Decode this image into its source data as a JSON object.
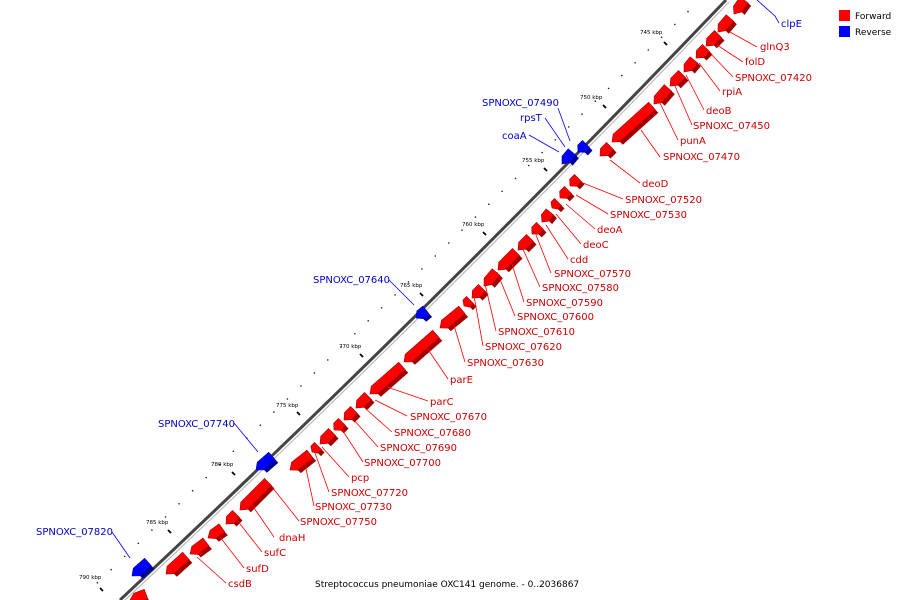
{
  "caption": "Streptococcus pneumoniae OXC141 genome. - 0..2036867",
  "legend": [
    {
      "label": "Forward",
      "color": "#ff0000"
    },
    {
      "label": "Reverse",
      "color": "#0000ff"
    }
  ],
  "colors": {
    "forward": "#ff0000",
    "reverse": "#0000ff",
    "forward_edge": "#a00000",
    "reverse_edge": "#00009a",
    "backbone": "#888888"
  },
  "scale_labels": [
    "745 kbp",
    "750 kbp",
    "755 kbp",
    "760 kbp",
    "765 kbp",
    "770 kbp",
    "775 kbp",
    "780 kbp",
    "785 kbp",
    "790 kbp"
  ],
  "forward_labels": [
    "glnQ3",
    "folD",
    "SPNOXC_07420",
    "rpiA",
    "deoB",
    "SPNOXC_07450",
    "punA",
    "SPNOXC_07470",
    "deoD",
    "SPNOXC_07520",
    "SPNOXC_07530",
    "deoA",
    "deoC",
    "cdd",
    "SPNOXC_07570",
    "SPNOXC_07580",
    "SPNOXC_07590",
    "SPNOXC_07600",
    "SPNOXC_07610",
    "SPNOXC_07620",
    "SPNOXC_07630",
    "parE",
    "parC",
    "SPNOXC_07670",
    "SPNOXC_07680",
    "SPNOXC_07690",
    "SPNOXC_07700",
    "pcp",
    "SPNOXC_07720",
    "SPNOXC_07730",
    "SPNOXC_07750",
    "dnaH",
    "sufC",
    "sufD",
    "csdB"
  ],
  "reverse_labels": [
    "clpE",
    "SPNOXC_07490",
    "rpsT",
    "coaA",
    "SPNOXC_07640",
    "SPNOXC_07740",
    "SPNOXC_07820"
  ]
}
